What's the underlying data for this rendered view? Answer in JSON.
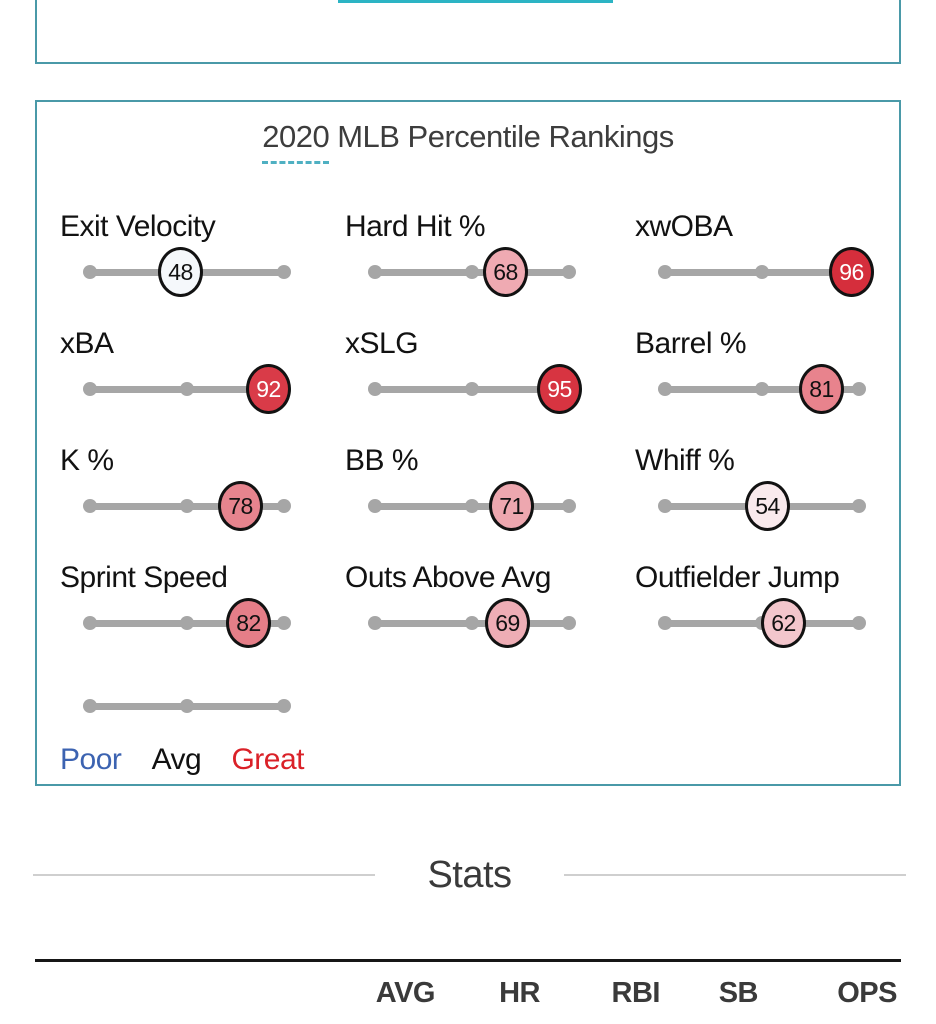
{
  "top_card": {
    "select_underline_color": "#2cb4c4"
  },
  "percentile_card": {
    "border_color": "#4a99a8",
    "title_year": "2020",
    "title_rest": "MLB Percentile Rankings",
    "track_color": "#a6a6a6",
    "stats": [
      {
        "label": "Exit Velocity",
        "value": 48,
        "fill": "#f5f8fb",
        "text_color": "#111111"
      },
      {
        "label": "Hard Hit %",
        "value": 68,
        "fill": "#efaab2",
        "text_color": "#111111"
      },
      {
        "label": "xwOBA",
        "value": 96,
        "fill": "#d52e3c",
        "text_color": "#ffffff"
      },
      {
        "label": "xBA",
        "value": 92,
        "fill": "#d93b48",
        "text_color": "#ffffff"
      },
      {
        "label": "xSLG",
        "value": 95,
        "fill": "#d73441",
        "text_color": "#ffffff"
      },
      {
        "label": "Barrel %",
        "value": 81,
        "fill": "#e8838d",
        "text_color": "#111111"
      },
      {
        "label": "K %",
        "value": 78,
        "fill": "#e6848e",
        "text_color": "#111111"
      },
      {
        "label": "BB %",
        "value": 71,
        "fill": "#eda7af",
        "text_color": "#111111"
      },
      {
        "label": "Whiff %",
        "value": 54,
        "fill": "#f9eaed",
        "text_color": "#111111"
      },
      {
        "label": "Sprint Speed",
        "value": 82,
        "fill": "#e57e88",
        "text_color": "#111111"
      },
      {
        "label": "Outs Above Avg",
        "value": 69,
        "fill": "#eeadb5",
        "text_color": "#111111"
      },
      {
        "label": "Outfielder Jump",
        "value": 62,
        "fill": "#f3c6cc",
        "text_color": "#111111"
      }
    ],
    "legend": {
      "poor": "Poor",
      "poor_color": "#3c63b1",
      "avg": "Avg",
      "avg_color": "#111111",
      "great": "Great",
      "great_color": "#da2128"
    }
  },
  "stats_section": {
    "heading": "Stats",
    "columns": [
      "AVG",
      "HR",
      "RBI",
      "SB",
      "OPS"
    ]
  }
}
